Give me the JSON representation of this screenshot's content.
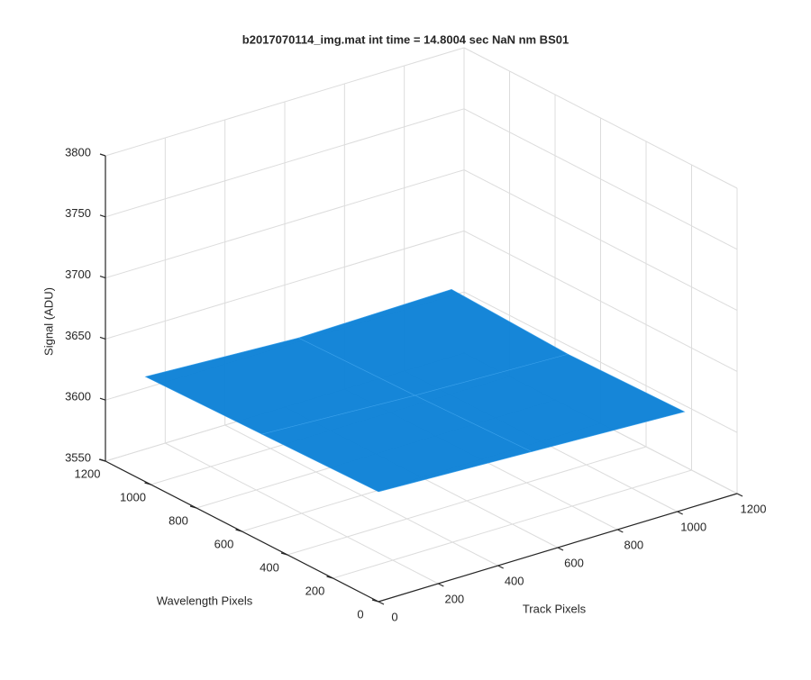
{
  "chart_data": {
    "type": "surface3d",
    "title": "b2017070114_img.mat int time = 14.8004 sec  NaN nm BS01",
    "x_label": "Track Pixels",
    "y_label": "Wavelength Pixels",
    "z_label": "Signal (ADU)",
    "x": [
      0,
      512,
      1024
    ],
    "y": [
      0,
      512,
      1024
    ],
    "z": [
      [
        3640,
        3635,
        3630
      ],
      [
        3638,
        3632,
        3628
      ],
      [
        3636,
        3630,
        3632
      ]
    ],
    "color": "#0a7fd6",
    "xlim": [
      0,
      1200
    ],
    "ylim": [
      0,
      1200
    ],
    "zlim": [
      3550,
      3800
    ],
    "xticks": [
      0,
      200,
      400,
      600,
      800,
      1000,
      1200
    ],
    "yticks": [
      0,
      200,
      400,
      600,
      800,
      1000,
      1200
    ],
    "zticks": [
      3550,
      3600,
      3650,
      3700,
      3750,
      3800
    ],
    "grid": true
  }
}
